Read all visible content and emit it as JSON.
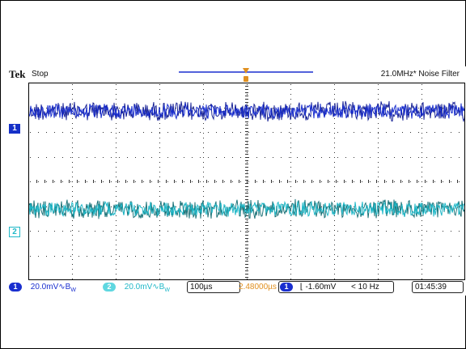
{
  "header": {
    "brand": "Tek",
    "run_state": "Stop",
    "filter_label": "21.0MHz* Noise Filter"
  },
  "channels": [
    {
      "id": "1",
      "color": "#1a2fcf",
      "noise_color": "#0b1690",
      "scale": "20.0mV",
      "coupling": "∿B",
      "bw_suffix": "W",
      "level": 0.145
    },
    {
      "id": "2",
      "color": "#20b8c8",
      "noise_color": "#0e6a70",
      "scale": "20.0mV",
      "coupling": "∿B",
      "bw_suffix": "W",
      "level": 0.64
    }
  ],
  "status": {
    "timebase": "100µs",
    "trigger_position": "2.48000µs",
    "trigger_channel": "1",
    "trigger_slope": "⌊",
    "trigger_level": "-1.60mV",
    "trigger_freq": "< 10 Hz",
    "clock": "01:45:39"
  },
  "colors": {
    "trigger_marker": "#e09020",
    "record_bar": "#1a2fcf",
    "grid_dot": "#333333"
  }
}
